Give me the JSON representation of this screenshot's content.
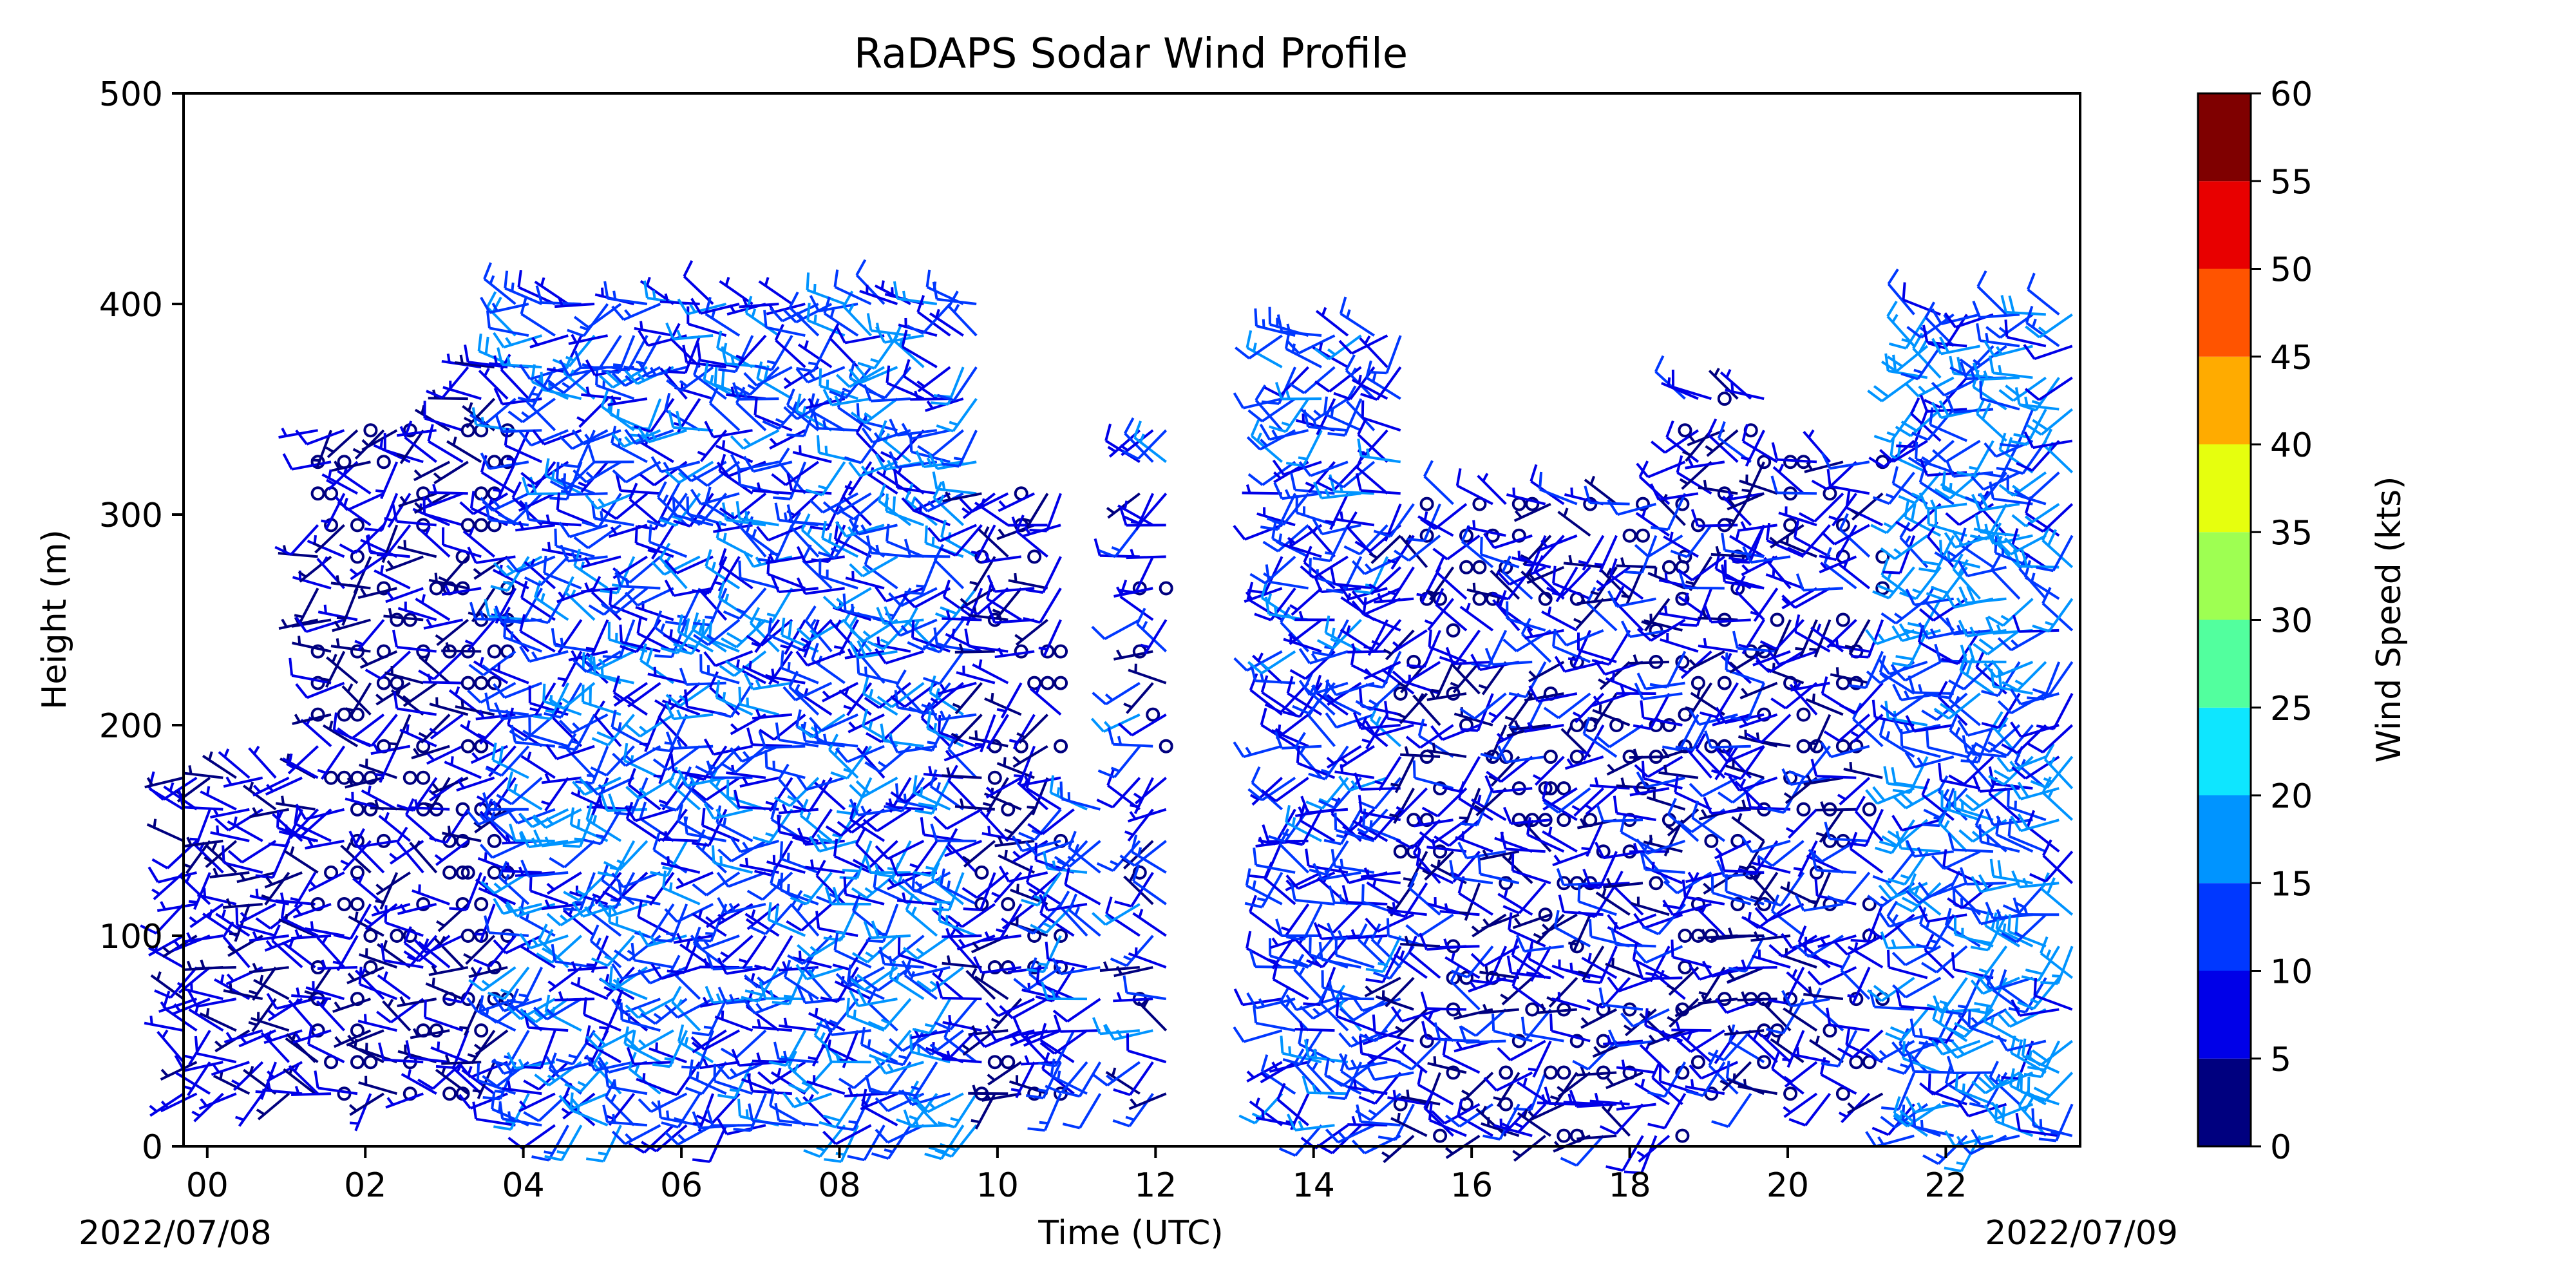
{
  "chart_data": {
    "type": "wind-barb-profile",
    "title": "RaDAPS Sodar Wind Profile",
    "xlabel": "Time (UTC)",
    "ylabel": "Height (m)",
    "x_tick_labels": [
      "00",
      "02",
      "04",
      "06",
      "08",
      "10",
      "12",
      "14",
      "16",
      "18",
      "20",
      "22"
    ],
    "x_ticks_hours": [
      0,
      2,
      4,
      6,
      8,
      10,
      12,
      14,
      16,
      18,
      20,
      22
    ],
    "y_tick_labels": [
      "0",
      "100",
      "200",
      "300",
      "400",
      "500"
    ],
    "ylim": [
      0,
      500
    ],
    "xlim_hours": [
      -0.3,
      23.7
    ],
    "date_start": "2022/07/08",
    "date_end": "2022/07/09",
    "colorbar": {
      "label": "Wind Speed (kts)",
      "tick_labels": [
        "0",
        "5",
        "10",
        "15",
        "20",
        "25",
        "30",
        "35",
        "40",
        "45",
        "50",
        "55",
        "60"
      ],
      "bounds": [
        0,
        5,
        10,
        15,
        20,
        25,
        30,
        35,
        40,
        45,
        50,
        55,
        60
      ],
      "colors": [
        "#00007f",
        "#0000e8",
        "#0038ff",
        "#0094ff",
        "#0ee6ff",
        "#52ff9e",
        "#9eff52",
        "#e6ff0e",
        "#ffab00",
        "#ff5400",
        "#e80000",
        "#7f0000"
      ]
    },
    "series": [
      {
        "segments": [
          {
            "t_start": -0.3,
            "t_end": 1.4,
            "h_min": 25,
            "h_max": 175,
            "speed_min": 3,
            "speed_max": 9
          },
          {
            "t_start": 1.4,
            "t_end": 3.3,
            "h_min": 25,
            "h_max": 340,
            "speed_min": 0,
            "speed_max": 9
          },
          {
            "t_start": 3.3,
            "t_end": 3.9,
            "h_min": 25,
            "h_max": 370,
            "speed_min": 0,
            "speed_max": 9
          },
          {
            "t_start": 3.9,
            "t_end": 9.8,
            "h_min": 10,
            "h_max": 400,
            "speed_min": 5,
            "speed_max": 18
          },
          {
            "t_start": 9.8,
            "t_end": 10.8,
            "h_min": 25,
            "h_max": 310,
            "speed_min": 0,
            "speed_max": 9
          },
          {
            "t_start": 10.8,
            "t_end": 11.4,
            "h_min": 25,
            "h_max": 170,
            "speed_min": 8,
            "speed_max": 16
          },
          {
            "t_start": 11.8,
            "t_end": 12.2,
            "h_min": 25,
            "h_max": 345,
            "speed_min": 0,
            "speed_max": 16
          },
          {
            "t_start": 13.6,
            "t_end": 15.1,
            "h_min": 10,
            "h_max": 385,
            "speed_min": 5,
            "speed_max": 16
          },
          {
            "t_start": 15.1,
            "t_end": 17.0,
            "h_min": 5,
            "h_max": 310,
            "speed_min": 0,
            "speed_max": 12
          },
          {
            "t_start": 17.0,
            "t_end": 18.7,
            "h_min": 5,
            "h_max": 310,
            "speed_min": 0,
            "speed_max": 12
          },
          {
            "t_start": 18.7,
            "t_end": 19.7,
            "h_min": 25,
            "h_max": 365,
            "speed_min": 0,
            "speed_max": 12
          },
          {
            "t_start": 19.7,
            "t_end": 21.3,
            "h_min": 25,
            "h_max": 330,
            "speed_min": 0,
            "speed_max": 12
          },
          {
            "t_start": 21.6,
            "t_end": 23.7,
            "h_min": 5,
            "h_max": 400,
            "speed_min": 8,
            "speed_max": 20
          }
        ]
      }
    ]
  }
}
